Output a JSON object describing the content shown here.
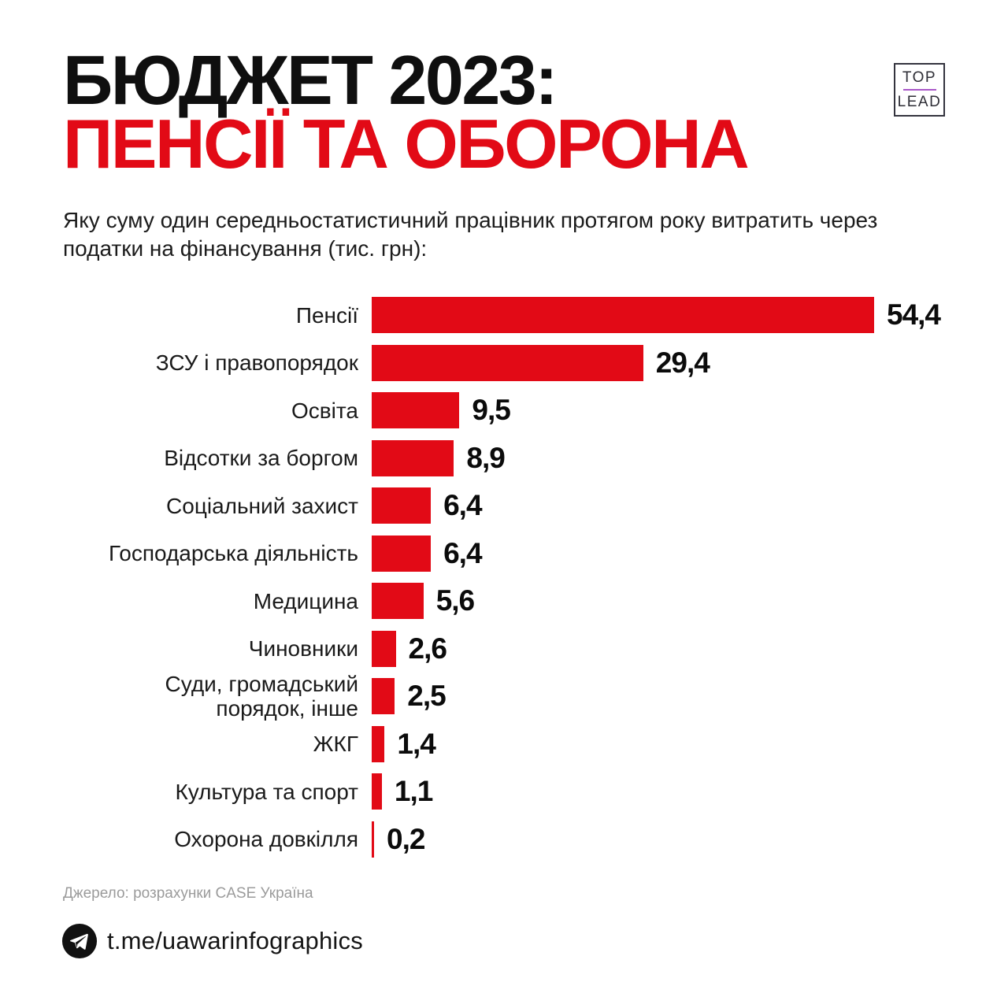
{
  "header": {
    "title_line1": "БЮДЖЕТ 2023:",
    "title_line2": "ПЕНСІЇ ТА ОБОРОНА",
    "subtitle": "Яку суму один середньостатистичний працівник протягом року витратить через податки на фінансування (тис. грн):"
  },
  "logo": {
    "top": "TOP",
    "lead": "LEAD"
  },
  "chart_data": {
    "type": "bar",
    "orientation": "horizontal",
    "title": "Яку суму один середньостатистичний працівник протягом року витратить через податки на фінансування (тис. грн)",
    "unit": "тис. грн",
    "max_value": 54.4,
    "categories": [
      "Пенсії",
      "ЗСУ і правопорядок",
      "Освіта",
      "Відсотки за боргом",
      "Соціальний захист",
      "Господарська діяльність",
      "Медицина",
      "Чиновники",
      "Суди, громадський\nпорядок, інше",
      "ЖКГ",
      "Культура та спорт",
      "Охорона довкілля"
    ],
    "values": [
      54.4,
      29.4,
      9.5,
      8.9,
      6.4,
      6.4,
      5.6,
      2.6,
      2.5,
      1.4,
      1.1,
      0.2
    ],
    "value_labels": [
      "54,4",
      "29,4",
      "9,5",
      "8,9",
      "6,4",
      "6,4",
      "5,6",
      "2,6",
      "2,5",
      "1,4",
      "1,1",
      "0,2"
    ],
    "bar_color": "#e20a16",
    "grid": false,
    "legend": false
  },
  "footer": {
    "source": "Джерело: розрахунки CASE Україна",
    "telegram_handle": "t.me/uawarinfographics",
    "telegram_icon": "telegram-paper-plane-icon"
  },
  "colors": {
    "accent_red": "#e20a16",
    "title_black": "#0f0f0f",
    "label_text": "#1a1a1a",
    "source_gray": "#9b9b9b",
    "logo_line_purple": "#a957c8",
    "background": "#ffffff"
  }
}
